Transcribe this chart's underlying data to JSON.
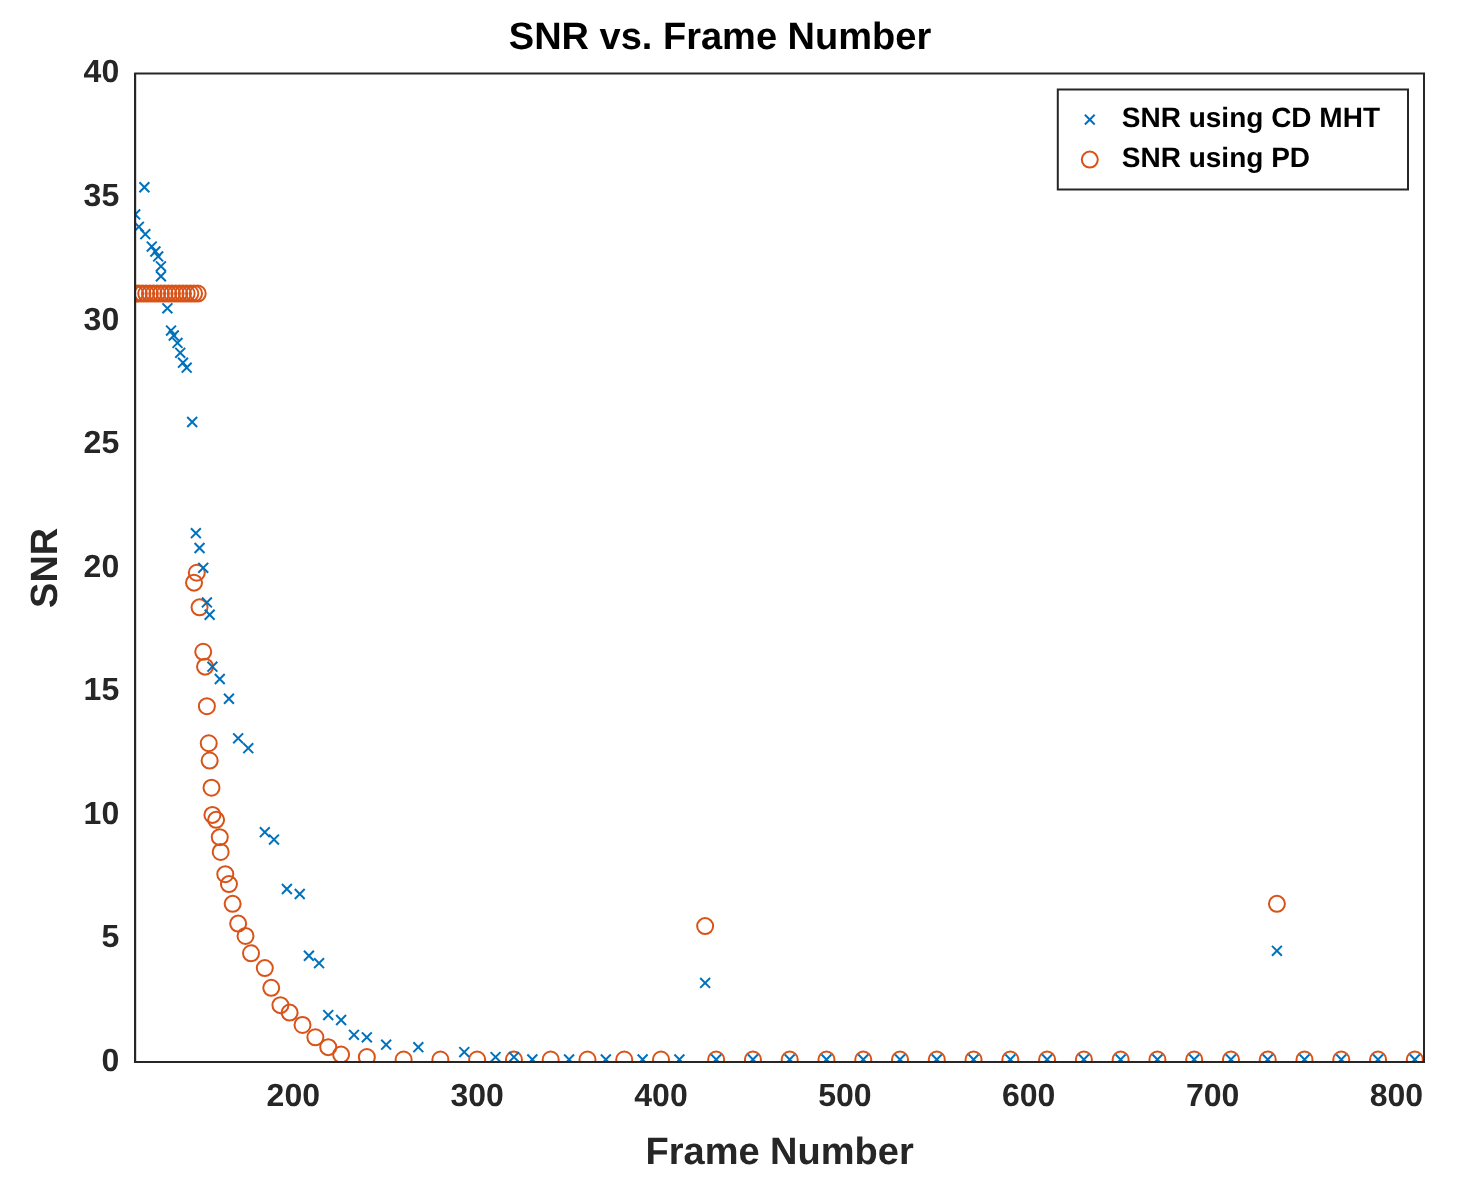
{
  "chart_data": {
    "type": "scatter",
    "title": "SNR vs. Frame Number",
    "xlabel": "Frame Number",
    "ylabel": "SNR",
    "xlim": [
      114,
      815
    ],
    "xticks": [
      200,
      300,
      400,
      500,
      600,
      700,
      800
    ],
    "ylim": [
      0,
      40
    ],
    "yticks": [
      0,
      5,
      10,
      15,
      20,
      25,
      30,
      35,
      40
    ],
    "grid": false,
    "legend": "top right",
    "series": [
      {
        "name": "SNR using CD MHT",
        "color": "#0072bd",
        "marker": "cross",
        "x": [
          114,
          116,
          119,
          119.5,
          123,
          125,
          126.5,
          128,
          128,
          131.5,
          133.5,
          135,
          137,
          138.5,
          140,
          142,
          145,
          147,
          149,
          151,
          153,
          154.5,
          156,
          160,
          165,
          170,
          175.5,
          184.5,
          189.5,
          196.5,
          203.5,
          208.5,
          214,
          219,
          226,
          233,
          240,
          250.5,
          268,
          293,
          310,
          320,
          330,
          350,
          370,
          390,
          410,
          424,
          430,
          450,
          470,
          490,
          510,
          530,
          550,
          570,
          590,
          610,
          630,
          650,
          670,
          690,
          710,
          730,
          735,
          750,
          770,
          790,
          810
        ],
        "values": [
          34.3,
          33.8,
          35.4,
          33.5,
          33.0,
          32.8,
          32.6,
          32.2,
          31.8,
          30.5,
          29.6,
          29.4,
          29.1,
          28.7,
          28.3,
          28.1,
          25.9,
          21.4,
          20.8,
          20.0,
          18.6,
          18.1,
          16.0,
          15.5,
          14.7,
          13.1,
          12.7,
          9.3,
          9.0,
          7.0,
          6.8,
          4.3,
          4.0,
          1.9,
          1.7,
          1.1,
          1.0,
          0.7,
          0.6,
          0.4,
          0.2,
          0.2,
          0.1,
          0.1,
          0.1,
          0.1,
          0.1,
          3.2,
          0.1,
          0.1,
          0.1,
          0.1,
          0.1,
          0.1,
          0.1,
          0.1,
          0.1,
          0.1,
          0.1,
          0.1,
          0.1,
          0.1,
          0.1,
          0.1,
          4.5,
          0.1,
          0.1,
          0.1,
          0.1
        ]
      },
      {
        "name": "SNR using PD",
        "color": "#d95319",
        "marker": "circle",
        "x": [
          114,
          116,
          118,
          120,
          122,
          124,
          126,
          128,
          130,
          132,
          134,
          136,
          138,
          140,
          142,
          144,
          146,
          148,
          146,
          147.5,
          149,
          151,
          152,
          153,
          154,
          154.5,
          155.5,
          156,
          158,
          160,
          160.5,
          163,
          165,
          167,
          170,
          174,
          177,
          184.5,
          188,
          193,
          198,
          205,
          212,
          219,
          226,
          240,
          260,
          280,
          300,
          320,
          340,
          360,
          380,
          400,
          424,
          430,
          450,
          470,
          490,
          510,
          530,
          550,
          570,
          590,
          610,
          630,
          650,
          670,
          690,
          710,
          730,
          735,
          750,
          770,
          790,
          810
        ],
        "values": [
          31.1,
          31.1,
          31.1,
          31.1,
          31.1,
          31.1,
          31.1,
          31.1,
          31.1,
          31.1,
          31.1,
          31.1,
          31.1,
          31.1,
          31.1,
          31.1,
          31.1,
          31.1,
          19.4,
          19.8,
          18.4,
          16.6,
          16.0,
          14.4,
          12.9,
          12.2,
          11.1,
          10.0,
          9.8,
          9.1,
          8.5,
          7.6,
          7.2,
          6.4,
          5.6,
          5.1,
          4.4,
          3.8,
          3.0,
          2.3,
          2.0,
          1.5,
          1.0,
          0.6,
          0.3,
          0.2,
          0.1,
          0.1,
          0.1,
          0.1,
          0.1,
          0.1,
          0.1,
          0.1,
          5.5,
          0.1,
          0.1,
          0.1,
          0.1,
          0.1,
          0.1,
          0.1,
          0.1,
          0.1,
          0.1,
          0.1,
          0.1,
          0.1,
          0.1,
          0.1,
          0.1,
          6.4,
          0.1,
          0.1,
          0.1,
          0.1
        ]
      }
    ]
  }
}
